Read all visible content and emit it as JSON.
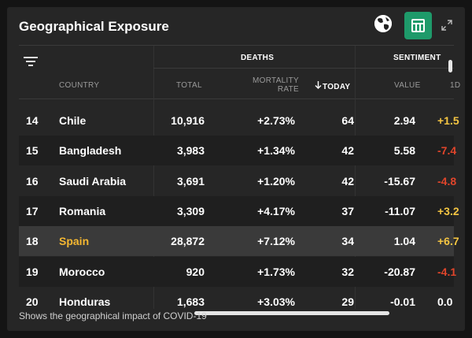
{
  "widget": {
    "title": "Geographical Exposure",
    "footer": "Shows the geographical impact of COVID-19",
    "icons": [
      "globe-icon",
      "table-icon",
      "expand-icon"
    ],
    "accent_color": "#1e9a6a"
  },
  "header": {
    "groups": {
      "deaths": "DEATHS",
      "sentiment": "SENTIMENT"
    },
    "columns": {
      "country": "COUNTRY",
      "total": "TOTAL",
      "mortality_line1": "MORTALITY",
      "mortality_line2": "RATE",
      "today": "TODAY",
      "value": "VALUE",
      "change": "1D"
    },
    "sorted_column": "TODAY",
    "sort_direction": "descending"
  },
  "rows": [
    {
      "rank": "14",
      "country": "Chile",
      "total": "10,916",
      "mortality": "+2.73%",
      "today": "64",
      "value": "2.94",
      "change": "+1.5",
      "change_sign": "pos"
    },
    {
      "rank": "15",
      "country": "Bangladesh",
      "total": "3,983",
      "mortality": "+1.34%",
      "today": "42",
      "value": "5.58",
      "change": "-7.4",
      "change_sign": "neg"
    },
    {
      "rank": "16",
      "country": "Saudi Arabia",
      "total": "3,691",
      "mortality": "+1.20%",
      "today": "42",
      "value": "-15.67",
      "change": "-4.8",
      "change_sign": "neg"
    },
    {
      "rank": "17",
      "country": "Romania",
      "total": "3,309",
      "mortality": "+4.17%",
      "today": "37",
      "value": "-11.07",
      "change": "+3.2",
      "change_sign": "pos"
    },
    {
      "rank": "18",
      "country": "Spain",
      "total": "28,872",
      "mortality": "+7.12%",
      "today": "34",
      "value": "1.04",
      "change": "+6.7",
      "change_sign": "pos",
      "highlighted": true
    },
    {
      "rank": "19",
      "country": "Morocco",
      "total": "920",
      "mortality": "+1.73%",
      "today": "32",
      "value": "-20.87",
      "change": "-4.1",
      "change_sign": "neg"
    },
    {
      "rank": "20",
      "country": "Honduras",
      "total": "1,683",
      "mortality": "+3.03%",
      "today": "29",
      "value": "-0.01",
      "change": "0.0",
      "change_sign": "zero"
    }
  ]
}
